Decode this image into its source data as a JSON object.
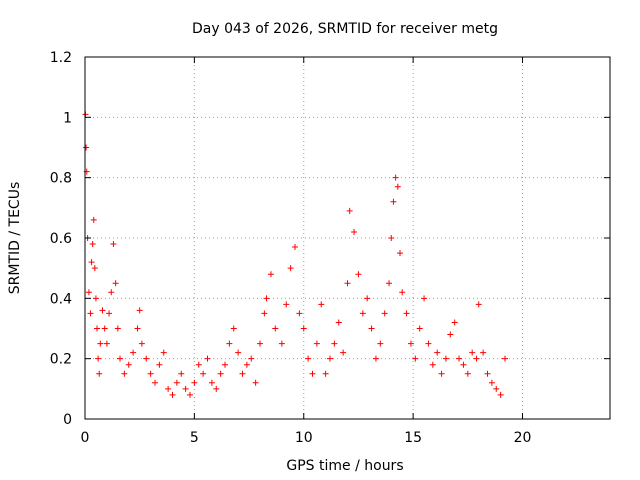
{
  "chart_data": {
    "type": "scatter",
    "title": "Day 043 of 2026, SRMTID for receiver metg",
    "xlabel": "GPS time / hours",
    "ylabel": "SRMTID / TECUs",
    "xlim": [
      0,
      24
    ],
    "ylim": [
      0,
      1.2
    ],
    "grid": true,
    "x_ticks": [
      0,
      5,
      10,
      15,
      20
    ],
    "x_tick_labels": [
      "0",
      "5",
      "10",
      "15",
      "20"
    ],
    "y_ticks": [
      0,
      0.2,
      0.4,
      0.6,
      0.8,
      1,
      1.2
    ],
    "y_tick_labels": [
      "0",
      "0.2",
      "0.4",
      "0.6",
      "0.8",
      "1",
      "1.2"
    ],
    "marker": "+",
    "marker_color": "#ff0000",
    "series": [
      {
        "name": "SRMTID",
        "x": [
          0.02,
          0.05,
          0.08,
          0.12,
          0.18,
          0.25,
          0.3,
          0.35,
          0.4,
          0.45,
          0.5,
          0.55,
          0.6,
          0.65,
          0.7,
          0.8,
          0.9,
          1.0,
          1.1,
          1.2,
          1.3,
          1.4,
          1.5,
          1.6,
          1.8,
          2.0,
          2.2,
          2.4,
          2.5,
          2.6,
          2.8,
          3.0,
          3.2,
          3.4,
          3.6,
          3.8,
          4.0,
          4.2,
          4.4,
          4.6,
          4.8,
          5.0,
          5.2,
          5.4,
          5.6,
          5.8,
          6.0,
          6.2,
          6.4,
          6.6,
          6.8,
          7.0,
          7.2,
          7.4,
          7.6,
          7.8,
          8.0,
          8.2,
          8.3,
          8.5,
          8.7,
          9.0,
          9.2,
          9.4,
          9.6,
          9.8,
          10.0,
          10.2,
          10.4,
          10.6,
          10.8,
          11.0,
          11.2,
          11.4,
          11.6,
          11.8,
          12.0,
          12.1,
          12.3,
          12.5,
          12.7,
          12.9,
          13.1,
          13.3,
          13.5,
          13.7,
          13.9,
          14.0,
          14.1,
          14.2,
          14.3,
          14.4,
          14.5,
          14.7,
          14.9,
          15.1,
          15.3,
          15.5,
          15.7,
          15.9,
          16.1,
          16.3,
          16.5,
          16.7,
          16.9,
          17.1,
          17.3,
          17.5,
          17.7,
          17.9,
          18.0,
          18.2,
          18.4,
          18.6,
          18.8,
          19.0,
          19.2
        ],
        "values": [
          1.01,
          0.9,
          0.82,
          0.6,
          0.42,
          0.35,
          0.52,
          0.58,
          0.66,
          0.5,
          0.4,
          0.3,
          0.2,
          0.15,
          0.25,
          0.36,
          0.3,
          0.25,
          0.35,
          0.42,
          0.58,
          0.45,
          0.3,
          0.2,
          0.15,
          0.18,
          0.22,
          0.3,
          0.36,
          0.25,
          0.2,
          0.15,
          0.12,
          0.18,
          0.22,
          0.1,
          0.08,
          0.12,
          0.15,
          0.1,
          0.08,
          0.12,
          0.18,
          0.15,
          0.2,
          0.12,
          0.1,
          0.15,
          0.18,
          0.25,
          0.3,
          0.22,
          0.15,
          0.18,
          0.2,
          0.12,
          0.25,
          0.35,
          0.4,
          0.48,
          0.3,
          0.25,
          0.38,
          0.5,
          0.57,
          0.35,
          0.3,
          0.2,
          0.15,
          0.25,
          0.38,
          0.15,
          0.2,
          0.25,
          0.32,
          0.22,
          0.45,
          0.69,
          0.62,
          0.48,
          0.35,
          0.4,
          0.3,
          0.2,
          0.25,
          0.35,
          0.45,
          0.6,
          0.72,
          0.8,
          0.77,
          0.55,
          0.42,
          0.35,
          0.25,
          0.2,
          0.3,
          0.4,
          0.25,
          0.18,
          0.22,
          0.15,
          0.2,
          0.28,
          0.32,
          0.2,
          0.18,
          0.15,
          0.22,
          0.2,
          0.38,
          0.22,
          0.15,
          0.12,
          0.1,
          0.08,
          0.2
        ]
      }
    ]
  }
}
